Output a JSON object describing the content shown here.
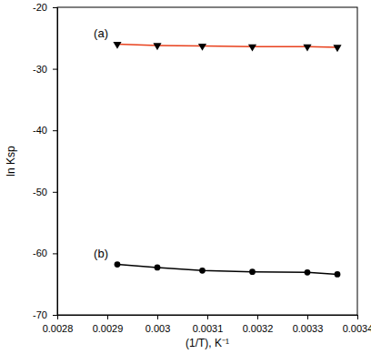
{
  "chart_data": {
    "type": "line",
    "xlabel": "(1/T), K⁻¹",
    "ylabel": "ln Ksp",
    "x": [
      0.00292,
      0.003,
      0.00309,
      0.00319,
      0.0033,
      0.00336
    ],
    "series": [
      {
        "name": "(a)",
        "color": "#e8401c",
        "marker": "triangle-down",
        "line_style": "solid",
        "values": [
          -26.0,
          -26.2,
          -26.3,
          -26.4,
          -26.4,
          -26.5
        ]
      },
      {
        "name": "(b)",
        "color": "#000000",
        "marker": "circle",
        "line_style": "solid",
        "values": [
          -61.8,
          -62.3,
          -62.8,
          -63.0,
          -63.1,
          -63.4
        ]
      }
    ],
    "xlim": [
      0.0028,
      0.0034
    ],
    "xticks": [
      0.0028,
      0.0029,
      0.003,
      0.0031,
      0.0032,
      0.0033,
      0.0034
    ],
    "ylim": [
      -70,
      -20
    ],
    "yticks": [
      -70,
      -60,
      -50,
      -40,
      -30,
      -20
    ],
    "grid": false
  }
}
